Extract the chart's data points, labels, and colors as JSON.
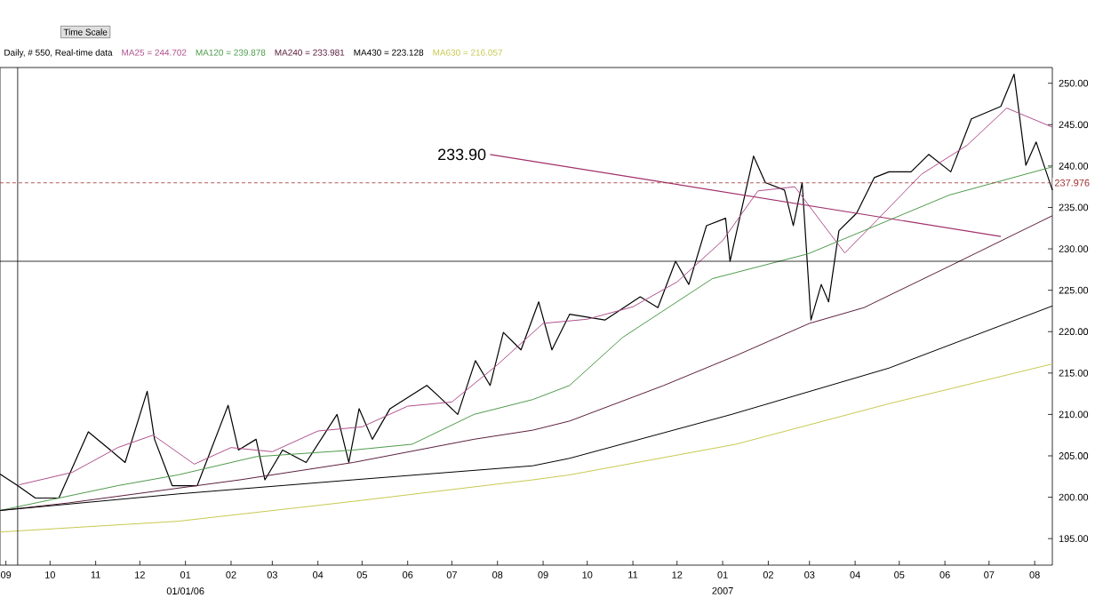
{
  "chart_data": {
    "type": "line",
    "title": "Daily, # 550, Real-time data",
    "legend": "top",
    "marker": "none",
    "xlim": [
      "2005-08-28",
      "2007-08-13"
    ],
    "ylim": [
      191.8,
      251.9
    ],
    "xticks": [
      {
        "value": "2005-09-01",
        "label": "09"
      },
      {
        "value": "2005-10-01",
        "label": "10"
      },
      {
        "value": "2005-11-01",
        "label": "11"
      },
      {
        "value": "2005-12-01",
        "label": "12"
      },
      {
        "value": "2006-01-01",
        "label": "01"
      },
      {
        "value": "2006-02-01",
        "label": "02"
      },
      {
        "value": "2006-03-01",
        "label": "03"
      },
      {
        "value": "2006-04-01",
        "label": "04"
      },
      {
        "value": "2006-05-01",
        "label": "05"
      },
      {
        "value": "2006-06-01",
        "label": "06"
      },
      {
        "value": "2006-07-01",
        "label": "07"
      },
      {
        "value": "2006-08-01",
        "label": "08"
      },
      {
        "value": "2006-09-01",
        "label": "09"
      },
      {
        "value": "2006-10-01",
        "label": "10"
      },
      {
        "value": "2006-11-01",
        "label": "11"
      },
      {
        "value": "2006-12-01",
        "label": "12"
      },
      {
        "value": "2007-01-01",
        "label": "01"
      },
      {
        "value": "2007-02-01",
        "label": "02"
      },
      {
        "value": "2007-03-01",
        "label": "03"
      },
      {
        "value": "2007-04-01",
        "label": "04"
      },
      {
        "value": "2007-05-01",
        "label": "05"
      },
      {
        "value": "2007-06-01",
        "label": "06"
      },
      {
        "value": "2007-07-01",
        "label": "07"
      },
      {
        "value": "2007-08-01",
        "label": "08"
      }
    ],
    "yticks": [
      {
        "value": 195,
        "label": "195.00"
      },
      {
        "value": 200,
        "label": "200.00"
      },
      {
        "value": 205,
        "label": "205.00"
      },
      {
        "value": 210,
        "label": "210.00"
      },
      {
        "value": 215,
        "label": "215.00"
      },
      {
        "value": 220,
        "label": "220.00"
      },
      {
        "value": 225,
        "label": "225.00"
      },
      {
        "value": 230,
        "label": "230.00"
      },
      {
        "value": 235,
        "label": "235.00"
      },
      {
        "value": 240,
        "label": "240.00"
      },
      {
        "value": 245,
        "label": "245.00"
      },
      {
        "value": 250,
        "label": "250.00"
      }
    ],
    "series": [
      {
        "color": "#000000",
        "x": [
          "2005-08-28",
          "2005-09-09",
          "2005-09-21",
          "2005-10-07",
          "2005-10-27",
          "2005-11-11",
          "2005-11-21",
          "2005-12-06",
          "2005-12-11",
          "2005-12-23",
          "2006-01-09",
          "2006-01-30",
          "2006-02-06",
          "2006-02-18",
          "2006-02-24",
          "2006-03-08",
          "2006-03-24",
          "2006-04-14",
          "2006-04-22",
          "2006-04-29",
          "2006-05-08",
          "2006-05-20",
          "2006-06-14",
          "2006-06-22",
          "2006-07-05",
          "2006-07-17",
          "2006-07-27",
          "2006-08-05",
          "2006-08-17",
          "2006-08-29",
          "2006-09-07",
          "2006-09-19",
          "2006-10-13",
          "2006-11-06",
          "2006-11-18",
          "2006-11-30",
          "2006-12-09",
          "2006-12-21",
          "2007-01-03",
          "2007-01-06",
          "2007-01-22",
          "2007-01-30",
          "2007-02-12",
          "2007-02-18",
          "2007-02-24",
          "2007-03-02",
          "2007-03-09",
          "2007-03-14",
          "2007-03-21",
          "2007-04-02",
          "2007-04-14",
          "2007-04-24",
          "2007-05-09",
          "2007-05-21",
          "2007-06-05",
          "2007-06-19",
          "2007-07-09",
          "2007-07-18",
          "2007-07-26",
          "2007-08-02",
          "2007-08-13"
        ],
        "values": [
          202.8,
          201.4,
          199.9,
          199.9,
          207.9,
          205.7,
          204.2,
          212.8,
          207.0,
          201.4,
          201.4,
          211.1,
          205.7,
          207.0,
          202.1,
          205.7,
          204.2,
          210.0,
          204.2,
          210.7,
          207.0,
          210.7,
          213.5,
          212.2,
          210.0,
          216.5,
          213.5,
          219.9,
          217.8,
          223.6,
          217.8,
          222.1,
          221.4,
          224.2,
          222.9,
          228.5,
          225.7,
          232.8,
          233.7,
          228.5,
          241.2,
          238.0,
          237.1,
          232.8,
          238.0,
          221.4,
          225.7,
          223.6,
          232.2,
          234.3,
          238.6,
          239.3,
          239.3,
          241.4,
          239.3,
          245.7,
          247.2,
          251.1,
          240.1,
          242.9,
          237.1
        ]
      },
      {
        "name": "MA25 = 244.702",
        "color": "#b0508c",
        "x": [
          "2005-09-10",
          "2005-10-16",
          "2005-11-16",
          "2005-12-10",
          "2006-01-07",
          "2006-02-01",
          "2006-03-01",
          "2006-04-01",
          "2006-05-01",
          "2006-06-01",
          "2006-07-01",
          "2006-08-01",
          "2006-09-01",
          "2006-10-01",
          "2006-11-01",
          "2006-12-01",
          "2007-01-01",
          "2007-01-25",
          "2007-02-19",
          "2007-03-10",
          "2007-03-25",
          "2007-04-16",
          "2007-05-16",
          "2007-06-16",
          "2007-07-13",
          "2007-08-13"
        ],
        "values": [
          201.5,
          203,
          206,
          207.5,
          204,
          206,
          205.5,
          208,
          208.5,
          211,
          211.5,
          216,
          221,
          221.5,
          223,
          226,
          231,
          237,
          237.5,
          233,
          229.5,
          233.5,
          239,
          242.5,
          247,
          244.7
        ]
      },
      {
        "name": "MA120 = 239.878",
        "color": "#4e9a4a",
        "x": [
          "2005-08-28",
          "2005-11-16",
          "2005-12-27",
          "2006-02-18",
          "2006-04-25",
          "2006-06-04",
          "2006-07-16",
          "2006-08-25",
          "2006-09-19",
          "2006-10-25",
          "2006-12-25",
          "2007-02-28",
          "2007-04-07",
          "2007-06-04",
          "2007-08-13"
        ],
        "values": [
          198.4,
          201.4,
          202.7,
          204.9,
          205.7,
          206.4,
          210,
          211.8,
          213.5,
          219.3,
          226.4,
          229.4,
          232.2,
          236.5,
          239.9
        ]
      },
      {
        "name": "MA240 = 233.981",
        "color": "#5a1e3c",
        "x": [
          "2005-08-28",
          "2005-10-13",
          "2006-02-07",
          "2006-04-25",
          "2006-07-16",
          "2006-08-25",
          "2006-09-19",
          "2006-11-22",
          "2007-01-10",
          "2007-03-01",
          "2007-04-07",
          "2007-06-04",
          "2007-08-13"
        ],
        "values": [
          198.4,
          199.3,
          202.1,
          204.2,
          207,
          208.1,
          209.2,
          213.5,
          217.1,
          221,
          222.9,
          227.9,
          234.0
        ]
      },
      {
        "name": "MA430 = 223.128",
        "color": "#000000",
        "x": [
          "2005-08-28",
          "2005-12-27",
          "2006-04-25",
          "2006-08-25",
          "2006-09-19",
          "2007-01-07",
          "2007-04-24",
          "2007-08-13"
        ],
        "values": [
          198.4,
          200.4,
          202.1,
          203.8,
          204.7,
          210,
          215.6,
          223.1
        ]
      },
      {
        "name": "MA630 = 216.057",
        "color": "#c8c850",
        "x": [
          "2005-08-28",
          "2005-12-27",
          "2006-04-25",
          "2006-08-25",
          "2006-09-19",
          "2007-01-10",
          "2007-04-24",
          "2007-08-13"
        ],
        "values": [
          195.8,
          197.1,
          199.5,
          202.1,
          202.7,
          206.4,
          211.3,
          216.1
        ]
      },
      {
        "color": "#a0306a",
        "x": [
          "2006-07-27",
          "2007-07-09"
        ],
        "values": [
          241.4,
          231.5
        ]
      }
    ],
    "ref_lines": [
      {
        "axis": "x",
        "value": "2005-09-09",
        "color": "#000000"
      },
      {
        "axis": "y",
        "value": 228.5,
        "color": "#000000"
      },
      {
        "axis": "y",
        "value": 237.976,
        "label": "237.976",
        "color": "#a03030",
        "line_style": "dashed"
      }
    ],
    "annotations": [
      "Time Scale",
      "233.90",
      "01/01/06",
      "2007"
    ]
  }
}
